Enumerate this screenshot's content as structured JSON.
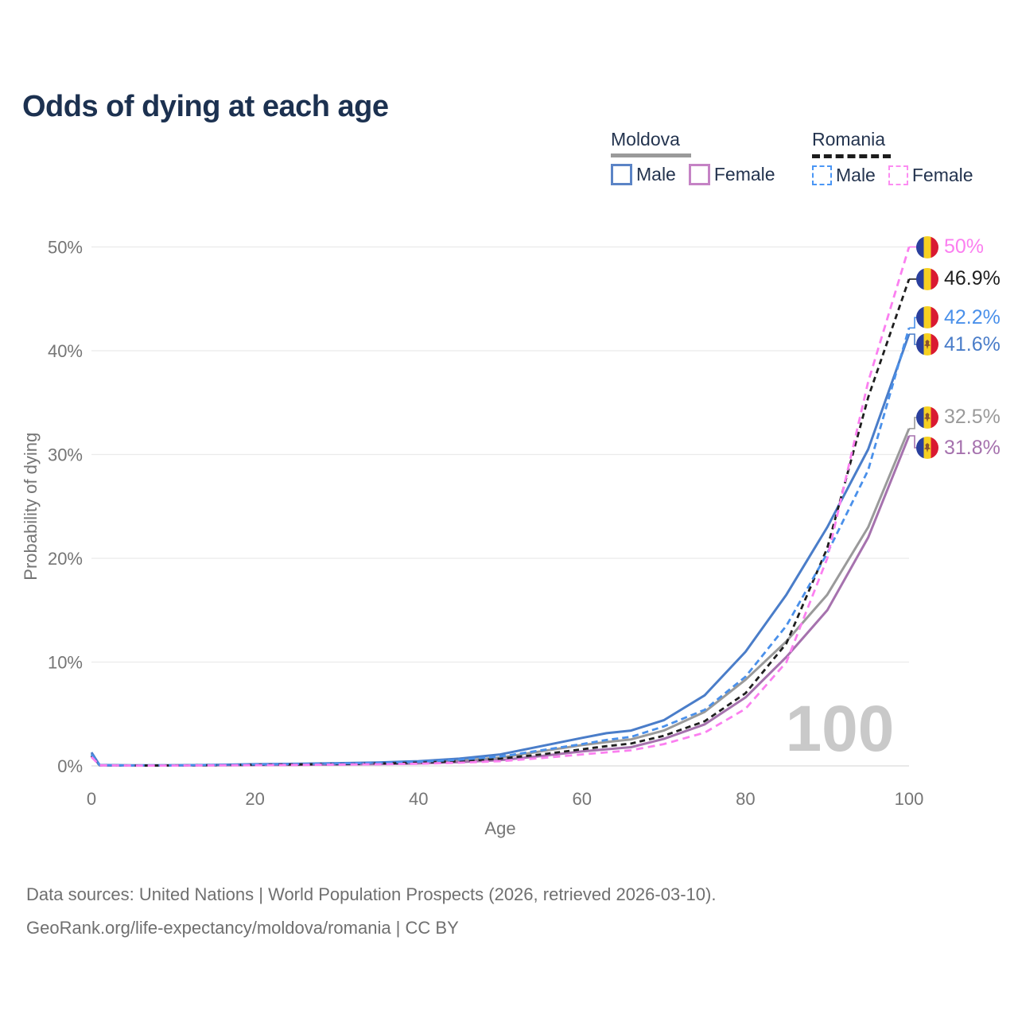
{
  "title": "Odds of dying at each age",
  "legend": {
    "groups": [
      {
        "header": "Moldova",
        "style": "solid",
        "items": [
          {
            "label": "Male"
          },
          {
            "label": "Female"
          }
        ]
      },
      {
        "header": "Romania",
        "style": "dashed",
        "items": [
          {
            "label": "Male"
          },
          {
            "label": "Female"
          }
        ]
      }
    ]
  },
  "colors": {
    "moldova_male": "#4a7dc9",
    "moldova_female": "#a672ae",
    "moldova_total": "#9a9a9a",
    "romania_male": "#4a90ea",
    "romania_female": "#fb7ff0",
    "romania_total": "#1f1f1f",
    "title_text": "#1c3150",
    "axis_text": "#757575",
    "gridline": "#ebebeb",
    "watermark": "#c9c9c9",
    "flag_blue": "#2a3f9d",
    "flag_yellow": "#f6d022",
    "flag_red": "#d91a32"
  },
  "end_labels": [
    {
      "text": "50%",
      "value_pct": 50.0,
      "flag": "romania",
      "series": "romania_female",
      "dy": 0
    },
    {
      "text": "46.9%",
      "value_pct": 46.9,
      "flag": "romania",
      "series": "romania_total",
      "dy": 0
    },
    {
      "text": "42.2%",
      "value_pct": 42.2,
      "flag": "romania",
      "series": "romania_male",
      "dy": -13
    },
    {
      "text": "41.6%",
      "value_pct": 41.6,
      "flag": "moldova",
      "series": "moldova_male",
      "dy": 13
    },
    {
      "text": "32.5%",
      "value_pct": 32.5,
      "flag": "moldova",
      "series": "moldova_total",
      "dy": -14
    },
    {
      "text": "31.8%",
      "value_pct": 31.8,
      "flag": "moldova",
      "series": "moldova_female",
      "dy": 15
    }
  ],
  "footer": {
    "line1": "Data sources: United Nations | World Population Prospects (2026, retrieved 2026-03-10).",
    "line2": "GeoRank.org/life-expectancy/moldova/romania | CC BY"
  },
  "chart_data": {
    "type": "line",
    "title": "Odds of dying at each age",
    "xlabel": "Age",
    "ylabel": "Probability of dying",
    "xlim": [
      0,
      100
    ],
    "ylim_pct": [
      0,
      50
    ],
    "x_ticks": [
      0,
      20,
      40,
      60,
      80,
      100
    ],
    "y_ticks_pct": [
      0,
      10,
      20,
      30,
      40,
      50
    ],
    "y_tick_suffix": "%",
    "grid": "horizontal",
    "legend_position": "top-right",
    "watermark": "100",
    "ages": [
      0,
      1,
      5,
      10,
      15,
      20,
      25,
      30,
      35,
      40,
      45,
      50,
      55,
      60,
      63,
      66,
      70,
      75,
      80,
      85,
      90,
      95,
      100
    ],
    "series": [
      {
        "id": "moldova_total",
        "name": "Moldova (both sexes)",
        "style": "solid",
        "color_key": "moldova_total",
        "values_pct": [
          1.15,
          0.07,
          0.04,
          0.05,
          0.08,
          0.12,
          0.15,
          0.19,
          0.25,
          0.34,
          0.52,
          0.8,
          1.4,
          2.0,
          2.3,
          2.55,
          3.4,
          5.2,
          8.3,
          12.0,
          16.5,
          23.0,
          32.5
        ],
        "end_value_pct": 32.5
      },
      {
        "id": "moldova_female",
        "name": "Moldova Female",
        "style": "solid",
        "color_key": "moldova_female",
        "values_pct": [
          1.0,
          0.06,
          0.03,
          0.04,
          0.06,
          0.08,
          0.1,
          0.13,
          0.17,
          0.24,
          0.36,
          0.55,
          0.95,
          1.4,
          1.6,
          1.8,
          2.6,
          4.0,
          6.6,
          10.5,
          15.0,
          22.0,
          31.8
        ],
        "end_value_pct": 31.8
      },
      {
        "id": "moldova_male",
        "name": "Moldova Male",
        "style": "solid",
        "color_key": "moldova_male",
        "values_pct": [
          1.3,
          0.08,
          0.05,
          0.06,
          0.1,
          0.16,
          0.2,
          0.26,
          0.33,
          0.45,
          0.7,
          1.1,
          1.9,
          2.7,
          3.15,
          3.4,
          4.4,
          6.8,
          11.0,
          16.5,
          23.0,
          30.5,
          41.6
        ],
        "end_value_pct": 41.6
      },
      {
        "id": "romania_total",
        "name": "Romania (both sexes)",
        "style": "dashed",
        "color_key": "romania_total",
        "values_pct": [
          0.95,
          0.06,
          0.03,
          0.04,
          0.07,
          0.11,
          0.14,
          0.18,
          0.23,
          0.31,
          0.46,
          0.7,
          1.1,
          1.6,
          1.9,
          2.15,
          2.9,
          4.3,
          7.0,
          11.8,
          21.0,
          35.5,
          46.9
        ],
        "end_value_pct": 46.9
      },
      {
        "id": "romania_male",
        "name": "Romania Male",
        "style": "dashed",
        "color_key": "romania_male",
        "values_pct": [
          1.1,
          0.07,
          0.04,
          0.05,
          0.09,
          0.14,
          0.18,
          0.23,
          0.3,
          0.4,
          0.6,
          0.9,
          1.5,
          2.1,
          2.5,
          2.8,
          3.8,
          5.4,
          8.6,
          13.5,
          20.5,
          28.5,
          42.2
        ],
        "end_value_pct": 42.2
      },
      {
        "id": "romania_female",
        "name": "Romania Female",
        "style": "dashed",
        "color_key": "romania_female",
        "values_pct": [
          0.85,
          0.05,
          0.03,
          0.03,
          0.05,
          0.07,
          0.09,
          0.12,
          0.15,
          0.21,
          0.31,
          0.45,
          0.75,
          1.1,
          1.3,
          1.5,
          2.1,
          3.2,
          5.5,
          10.0,
          20.0,
          37.0,
          50.0
        ],
        "end_value_pct": 50.0
      }
    ]
  }
}
